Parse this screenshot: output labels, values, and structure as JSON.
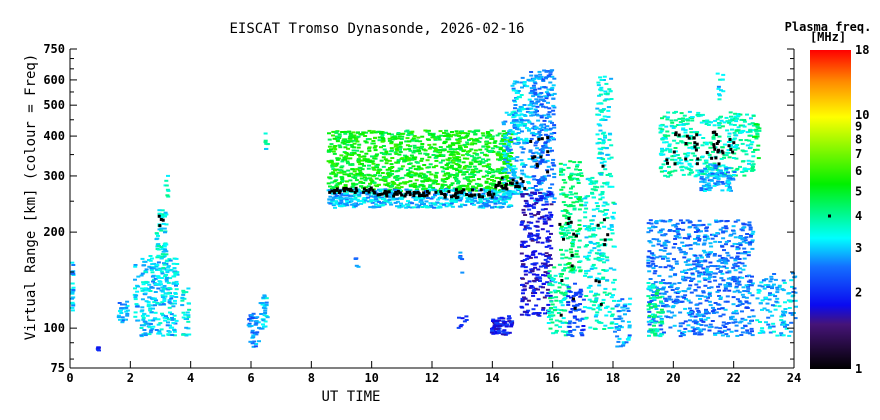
{
  "chart_data": {
    "type": "scatter",
    "title": "EISCAT Tromso Dynasonde, 2026-02-16",
    "xlabel": "UT TIME",
    "ylabel": "Virtual Range [km] (colour = Freq)",
    "xlim": [
      0,
      24
    ],
    "ylim": [
      75,
      750
    ],
    "yscale": "log",
    "x_ticks": [
      "0",
      "2",
      "4",
      "6",
      "8",
      "10",
      "12",
      "14",
      "16",
      "18",
      "20",
      "22",
      "24"
    ],
    "y_ticks": [
      "75",
      "100",
      "200",
      "300",
      "400",
      "500",
      "600",
      "750"
    ],
    "colorbar": {
      "label_line1": "Plasma freq.",
      "label_line2": "[MHz]",
      "range": [
        1,
        18
      ],
      "scale": "log",
      "ticks": [
        "1",
        "2",
        "3",
        "4",
        "5",
        "6",
        "7",
        "8",
        "9",
        "10",
        "18"
      ],
      "marker_value": 4
    },
    "clusters": [
      {
        "t": [
          0.0,
          0.05
        ],
        "h": [
          110,
          170
        ],
        "f": 3.0,
        "n": 25
      },
      {
        "t": [
          0.8,
          0.9
        ],
        "h": [
          85,
          89
        ],
        "f": 2.0,
        "n": 6
      },
      {
        "t": [
          1.55,
          1.9
        ],
        "h": [
          105,
          122
        ],
        "f": 2.8,
        "n": 25
      },
      {
        "t": [
          2.05,
          2.2
        ],
        "h": [
          105,
          160
        ],
        "f": 3.0,
        "n": 20
      },
      {
        "t": [
          2.3,
          3.5
        ],
        "h": [
          95,
          170
        ],
        "f": 3.1,
        "n": 260
      },
      {
        "t": [
          2.8,
          3.15
        ],
        "h": [
          150,
          240
        ],
        "f": 3.4,
        "n": 60
      },
      {
        "t": [
          3.1,
          3.2
        ],
        "h": [
          260,
          305
        ],
        "f": 3.6,
        "n": 8
      },
      {
        "t": [
          3.65,
          3.9
        ],
        "h": [
          95,
          135
        ],
        "f": 3.4,
        "n": 30
      },
      {
        "t": [
          5.85,
          6.2
        ],
        "h": [
          88,
          112
        ],
        "f": 2.6,
        "n": 40
      },
      {
        "t": [
          6.25,
          6.5
        ],
        "h": [
          100,
          128
        ],
        "f": 3.0,
        "n": 30
      },
      {
        "t": [
          6.4,
          6.5
        ],
        "h": [
          360,
          430
        ],
        "f": 3.6,
        "n": 8
      },
      {
        "t": [
          8.5,
          14.6
        ],
        "h": [
          270,
          420
        ],
        "f": 5.2,
        "n": 1100
      },
      {
        "t": [
          8.5,
          14.6
        ],
        "h": [
          240,
          275
        ],
        "f": 3.0,
        "n": 500
      },
      {
        "t": [
          9.4,
          9.5
        ],
        "h": [
          150,
          168
        ],
        "f": 2.5,
        "n": 5
      },
      {
        "t": [
          12.85,
          12.95
        ],
        "h": [
          150,
          175
        ],
        "f": 2.5,
        "n": 6
      },
      {
        "t": [
          12.8,
          13.1
        ],
        "h": [
          100,
          110
        ],
        "f": 2.0,
        "n": 8
      },
      {
        "t": [
          13.9,
          14.6
        ],
        "h": [
          96,
          110
        ],
        "f": 1.9,
        "n": 70
      },
      {
        "t": [
          14.3,
          15.2
        ],
        "h": [
          260,
          500
        ],
        "f": 3.0,
        "n": 150
      },
      {
        "t": [
          14.6,
          15.3
        ],
        "h": [
          380,
          620
        ],
        "f": 3.0,
        "n": 80
      },
      {
        "t": [
          15.2,
          16.0
        ],
        "h": [
          250,
          650
        ],
        "f": 2.6,
        "n": 260
      },
      {
        "t": [
          14.9,
          15.9
        ],
        "h": [
          110,
          270
        ],
        "f": 1.8,
        "n": 260
      },
      {
        "t": [
          15.8,
          16.5
        ],
        "h": [
          95,
          160
        ],
        "f": 3.8,
        "n": 90
      },
      {
        "t": [
          16.2,
          16.9
        ],
        "h": [
          150,
          340
        ],
        "f": 4.2,
        "n": 150
      },
      {
        "t": [
          16.4,
          17.0
        ],
        "h": [
          95,
          140
        ],
        "f": 2.2,
        "n": 60
      },
      {
        "t": [
          17.0,
          18.0
        ],
        "h": [
          100,
          300
        ],
        "f": 3.5,
        "n": 220
      },
      {
        "t": [
          17.4,
          17.9
        ],
        "h": [
          300,
          620
        ],
        "f": 3.4,
        "n": 90
      },
      {
        "t": [
          18.0,
          18.5
        ],
        "h": [
          88,
          125
        ],
        "f": 2.8,
        "n": 50
      },
      {
        "t": [
          19.1,
          22.6
        ],
        "h": [
          95,
          220
        ],
        "f": 2.6,
        "n": 750
      },
      {
        "t": [
          19.1,
          19.6
        ],
        "h": [
          95,
          140
        ],
        "f": 4.0,
        "n": 60
      },
      {
        "t": [
          19.5,
          22.6
        ],
        "h": [
          300,
          480
        ],
        "f": 3.7,
        "n": 380
      },
      {
        "t": [
          20.8,
          22.0
        ],
        "h": [
          270,
          330
        ],
        "f": 2.8,
        "n": 100
      },
      {
        "t": [
          21.4,
          21.6
        ],
        "h": [
          520,
          640
        ],
        "f": 3.2,
        "n": 12
      },
      {
        "t": [
          22.6,
          22.8
        ],
        "h": [
          340,
          450
        ],
        "f": 4.5,
        "n": 20
      },
      {
        "t": [
          22.7,
          24.0
        ],
        "h": [
          95,
          150
        ],
        "f": 3.0,
        "n": 120
      }
    ],
    "trace": [
      {
        "t": [
          8.5,
          10
        ],
        "h": [
          268,
          278
        ]
      },
      {
        "t": [
          10,
          12
        ],
        "h": [
          262,
          272
        ]
      },
      {
        "t": [
          12,
          14
        ],
        "h": [
          258,
          275
        ]
      },
      {
        "t": [
          14,
          15.2
        ],
        "h": [
          275,
          300
        ]
      },
      {
        "t": [
          15.2,
          15.8
        ],
        "h": [
          300,
          400
        ]
      },
      {
        "t": [
          16.1,
          16.8
        ],
        "h": [
          110,
          230
        ]
      },
      {
        "t": [
          17.3,
          17.8
        ],
        "h": [
          110,
          330
        ]
      },
      {
        "t": [
          19.7,
          22.0
        ],
        "h": [
          330,
          420
        ]
      },
      {
        "t": [
          2.9,
          3.1
        ],
        "h": [
          180,
          230
        ]
      }
    ]
  }
}
